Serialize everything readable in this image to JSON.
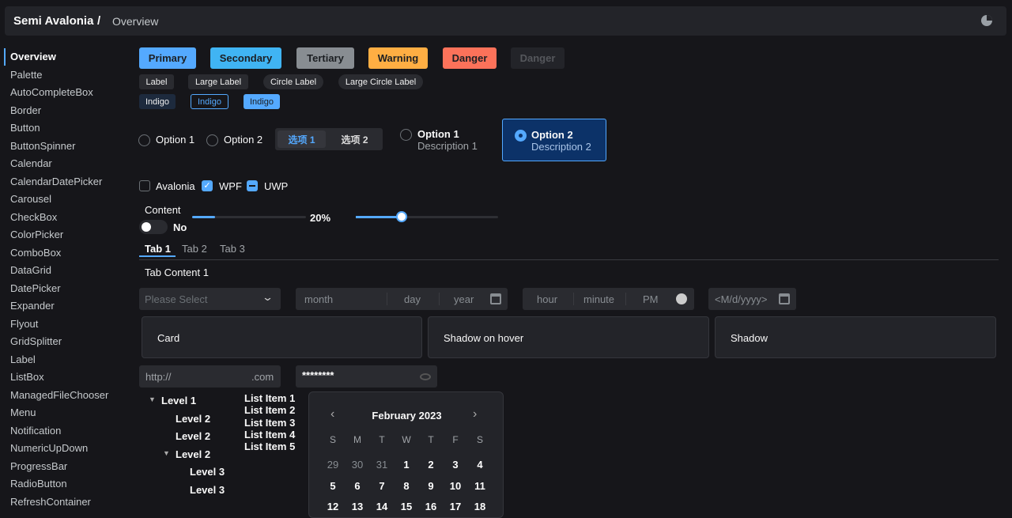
{
  "header": {
    "title": "Semi Avalonia",
    "separator": "/",
    "breadcrumb": "Overview",
    "theme_icon": "theme-toggle-icon"
  },
  "sidebar": {
    "items": [
      "Overview",
      "Palette",
      "AutoCompleteBox",
      "Border",
      "Button",
      "ButtonSpinner",
      "Calendar",
      "CalendarDatePicker",
      "Carousel",
      "CheckBox",
      "ColorPicker",
      "ComboBox",
      "DataGrid",
      "DatePicker",
      "Expander",
      "Flyout",
      "GridSplitter",
      "Label",
      "ListBox",
      "ManagedFileChooser",
      "Menu",
      "Notification",
      "NumericUpDown",
      "ProgressBar",
      "RadioButton",
      "RefreshContainer"
    ],
    "active": "Overview"
  },
  "buttons": [
    {
      "label": "Primary",
      "color": "#54a9ff"
    },
    {
      "label": "Secondary",
      "color": "#40b4f3"
    },
    {
      "label": "Tertiary",
      "color": "#888d92"
    },
    {
      "label": "Warning",
      "color": "#ffae43"
    },
    {
      "label": "Danger",
      "color": "#fc725a"
    },
    {
      "label": "Danger",
      "color": "#232429",
      "disabled": true
    }
  ],
  "labels": [
    "Label",
    "Large Label",
    "Circle Label",
    "Large Circle Label"
  ],
  "indigo_tags": [
    "Indigo",
    "Indigo",
    "Indigo"
  ],
  "radios": {
    "option1": "Option 1",
    "option2": "Option 2"
  },
  "segmented": {
    "items": [
      "选项 1",
      "选项 2"
    ],
    "selected": 0
  },
  "radio_cards": [
    {
      "title": "Option 1",
      "desc": "Description 1",
      "checked": false
    },
    {
      "title": "Option 2",
      "desc": "Description 2",
      "checked": true
    }
  ],
  "checkboxes": [
    {
      "label": "Avalonia",
      "state": "unchecked"
    },
    {
      "label": "WPF",
      "state": "checked"
    },
    {
      "label": "UWP",
      "state": "indeterminate"
    }
  ],
  "toggle": {
    "header": "Content",
    "label": "No",
    "on": false
  },
  "progress": {
    "value": 20,
    "label": "20%"
  },
  "slider": {
    "value": 32
  },
  "tabs": {
    "items": [
      "Tab 1",
      "Tab 2",
      "Tab 3"
    ],
    "selected": 0,
    "content": "Tab Content 1"
  },
  "combo": {
    "placeholder": "Please Select"
  },
  "date_picker": {
    "month": "month",
    "day": "day",
    "year": "year"
  },
  "time_picker": {
    "hour": "hour",
    "minute": "minute",
    "ampm": "PM"
  },
  "calendar_date_picker": {
    "placeholder": "<M/d/yyyy>"
  },
  "cards": [
    "Card",
    "Shadow on hover",
    "Shadow"
  ],
  "url_input": {
    "prefix": "http://",
    "suffix": ".com"
  },
  "password": {
    "value": "********"
  },
  "tree": [
    {
      "label": "Level 1",
      "level": 1,
      "expanded": true
    },
    {
      "label": "Level 2",
      "level": 2
    },
    {
      "label": "Level 2",
      "level": 2
    },
    {
      "label": "Level 2",
      "level": 2,
      "expanded": true
    },
    {
      "label": "Level 3",
      "level": 3
    },
    {
      "label": "Level 3",
      "level": 3
    }
  ],
  "list": [
    "List Item 1",
    "List Item 2",
    "List Item 3",
    "List Item 4",
    "List Item 5"
  ],
  "calendar": {
    "title": "February 2023",
    "weekdays": [
      "S",
      "M",
      "T",
      "W",
      "T",
      "F",
      "S"
    ],
    "rows": [
      [
        "29",
        "30",
        "31",
        "1",
        "2",
        "3",
        "4"
      ],
      [
        "5",
        "6",
        "7",
        "8",
        "9",
        "10",
        "11"
      ],
      [
        "12",
        "13",
        "14",
        "15",
        "16",
        "17",
        "18"
      ]
    ],
    "prev_month_days": 3
  }
}
